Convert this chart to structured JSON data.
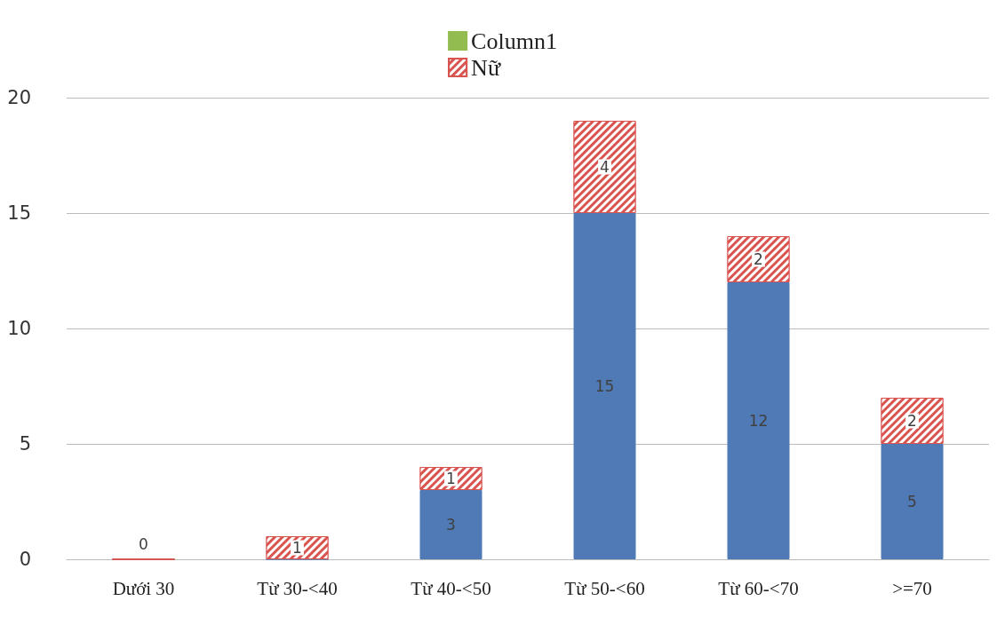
{
  "chart_data": {
    "type": "bar",
    "stacked": true,
    "categories": [
      "Dưới 30",
      "Từ 30-<40",
      "Từ 40-<50",
      "Từ 50-<60",
      "Từ 60-<70",
      ">=70"
    ],
    "series": [
      {
        "color": "#4f7ab5",
        "values": [
          0,
          0,
          3,
          15,
          12,
          5
        ],
        "value_labels": [
          "0",
          null,
          "3",
          "15",
          "12",
          "5"
        ]
      },
      {
        "name": "Nữ",
        "color": "#d9534f",
        "values": [
          0,
          1,
          1,
          4,
          2,
          2
        ],
        "value_labels": [
          null,
          "1",
          "1",
          "4",
          "2",
          "2"
        ]
      },
      {
        "name": "Column1",
        "color": "#92bc4f",
        "values": [
          null,
          null,
          null,
          null,
          null,
          null
        ]
      }
    ],
    "ylim": [
      0,
      20
    ],
    "yticks": [
      0,
      5,
      10,
      15,
      20
    ],
    "grid": "y",
    "legend": "top"
  }
}
